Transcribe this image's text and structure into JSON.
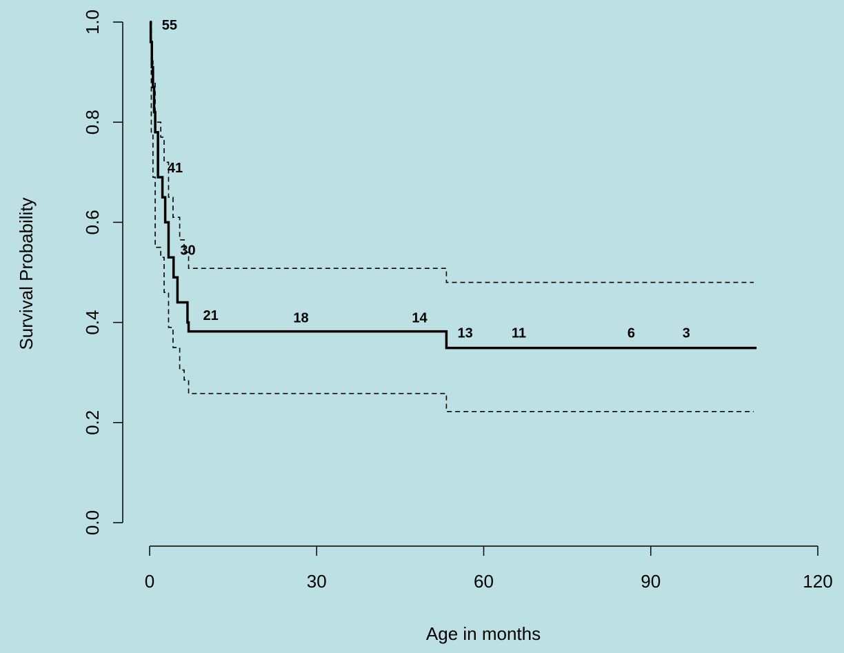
{
  "colors": {
    "background": "#bce0e3",
    "ink": "#000000"
  },
  "chart_data": {
    "type": "line",
    "xlabel": "Age in months",
    "ylabel": "Survival Probability",
    "xlim": [
      0,
      120
    ],
    "ylim": [
      0,
      1
    ],
    "xticks": [
      "0",
      "30",
      "60",
      "90",
      "120"
    ],
    "yticks": [
      "0.0",
      "0.2",
      "0.4",
      "0.6",
      "0.8",
      "1.0"
    ],
    "xtick_values": [
      0,
      30,
      60,
      90,
      120
    ],
    "ytick_values": [
      0,
      0.2,
      0.4,
      0.6,
      0.8,
      1.0
    ],
    "grid": false,
    "series": [
      {
        "style": "solid",
        "x": [
          0,
          0.2,
          0.4,
          0.6,
          0.8,
          1.0,
          1.5,
          2.3,
          2.8,
          3.4,
          4.3,
          5.0,
          5.7,
          6.8,
          7.0,
          53.3,
          109
        ],
        "y": [
          1.0,
          0.96,
          0.91,
          0.87,
          0.82,
          0.78,
          0.69,
          0.65,
          0.6,
          0.53,
          0.49,
          0.44,
          0.44,
          0.4,
          0.382,
          0.349,
          0.349
        ]
      },
      {
        "style": "dashed",
        "x": [
          0,
          0.3,
          0.6,
          1.0,
          2.0,
          2.6,
          3.4,
          4.2,
          5.4,
          6.2,
          7.0,
          53.3,
          108.5
        ],
        "y": [
          1.0,
          0.93,
          0.88,
          0.8,
          0.77,
          0.72,
          0.65,
          0.61,
          0.565,
          0.54,
          0.508,
          0.48,
          0.48
        ]
      },
      {
        "style": "dashed",
        "x": [
          0,
          0.3,
          0.6,
          1.0,
          2.0,
          2.6,
          3.4,
          4.2,
          5.4,
          6.2,
          7.0,
          53.3,
          108.5
        ],
        "y": [
          1.0,
          0.78,
          0.69,
          0.55,
          0.53,
          0.46,
          0.39,
          0.35,
          0.305,
          0.285,
          0.258,
          0.222,
          0.222
        ]
      }
    ],
    "annotations": [
      {
        "text": "55",
        "x": 2.2,
        "y": 0.985
      },
      {
        "text": "41",
        "x": 3.2,
        "y": 0.7
      },
      {
        "text": "30",
        "x": 5.5,
        "y": 0.535
      },
      {
        "text": "21",
        "x": 9.6,
        "y": 0.405
      },
      {
        "text": "18",
        "x": 25.8,
        "y": 0.4
      },
      {
        "text": "14",
        "x": 47.1,
        "y": 0.4
      },
      {
        "text": "13",
        "x": 55.3,
        "y": 0.37
      },
      {
        "text": "11",
        "x": 65.0,
        "y": 0.37
      },
      {
        "text": "6",
        "x": 85.8,
        "y": 0.37
      },
      {
        "text": "3",
        "x": 95.7,
        "y": 0.37
      }
    ]
  }
}
